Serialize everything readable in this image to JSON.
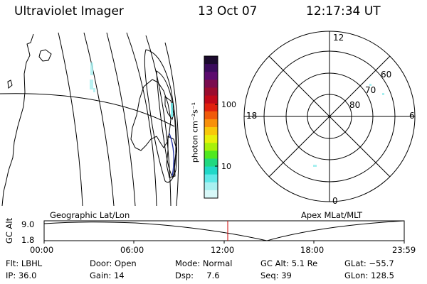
{
  "header": {
    "instrument": "Ultraviolet Imager",
    "date": "13 Oct 07",
    "time": "12:17:34 UT"
  },
  "left_panel": {
    "label": "Geographic Lat/Lon"
  },
  "right_panel": {
    "label": "Apex MLat/MLT",
    "mlt_labels": [
      "12",
      "18",
      "6",
      "0"
    ],
    "lat_labels": [
      "60",
      "70",
      "80"
    ]
  },
  "colorbar": {
    "unit_label": "photon cm⁻²s⁻¹",
    "ticks": [
      "100",
      "10"
    ],
    "colors": [
      "#1b0a2e",
      "#3a0b5c",
      "#5c0b6e",
      "#7a0b4e",
      "#9a0b2e",
      "#c0081a",
      "#e0200e",
      "#f05a0a",
      "#f8900a",
      "#f8c80a",
      "#e8f00a",
      "#a8f00a",
      "#50e820",
      "#20d880",
      "#20d8c8",
      "#60e8e8",
      "#a8f0f0",
      "#d8f8f8"
    ]
  },
  "timeline": {
    "axis_label": "GC Alt",
    "y_ticks": [
      "9.0",
      "1.8"
    ],
    "x_ticks": [
      "00:00",
      "06:00",
      "12:00",
      "18:00",
      "23:59"
    ],
    "current_marker": "12:17",
    "marker_color": "#cc0000"
  },
  "status": {
    "filter": "Flt: LBHL",
    "ip": "IP: 36.0",
    "door": "Door: Open",
    "gain": "Gain: 14",
    "mode": "Mode: Normal",
    "dsp": "Dsp:     7.6",
    "gc_alt": "GC Alt: 5.1 Re",
    "seq": "Seq: 39",
    "glat": "GLat: −55.7",
    "glon": "GLon: 128.5"
  }
}
